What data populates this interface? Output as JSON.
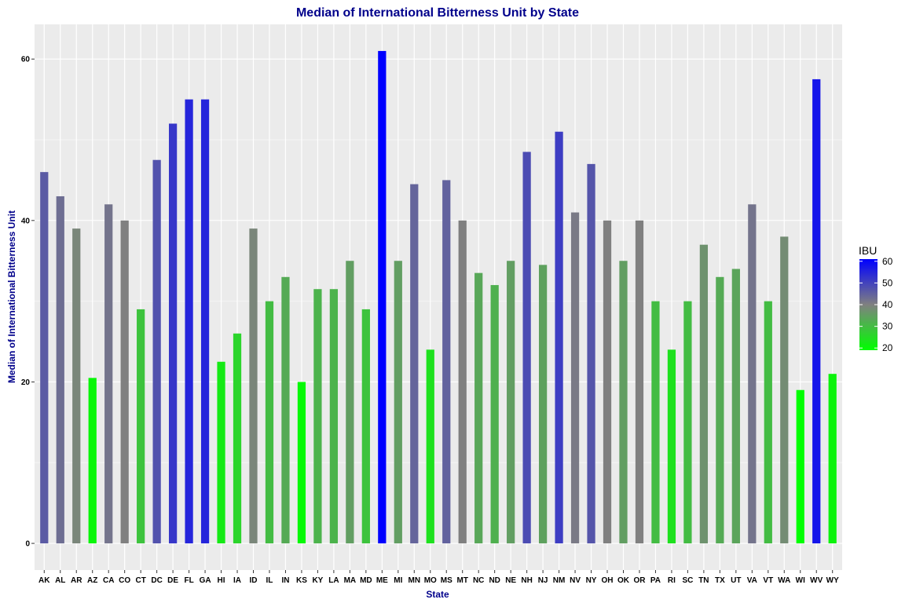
{
  "chart_data": {
    "type": "bar",
    "title": "Median of International Bitterness Unit by State",
    "xlabel": "State",
    "ylabel": "Median of International Bitterness Unit",
    "ylim": [
      -3.3,
      64.3
    ],
    "yticks": [
      0,
      20,
      40,
      60
    ],
    "grid": true,
    "categories": [
      "AK",
      "AL",
      "AR",
      "AZ",
      "CA",
      "CO",
      "CT",
      "DC",
      "DE",
      "FL",
      "GA",
      "HI",
      "IA",
      "ID",
      "IL",
      "IN",
      "KS",
      "KY",
      "LA",
      "MA",
      "MD",
      "ME",
      "MI",
      "MN",
      "MO",
      "MS",
      "MT",
      "NC",
      "ND",
      "NE",
      "NH",
      "NJ",
      "NM",
      "NV",
      "NY",
      "OH",
      "OK",
      "OR",
      "PA",
      "RI",
      "SC",
      "TN",
      "TX",
      "UT",
      "VA",
      "VT",
      "WA",
      "WI",
      "WV",
      "WY"
    ],
    "values": [
      46,
      43,
      39,
      20.5,
      42,
      40,
      29,
      47.5,
      52,
      55,
      55,
      22.5,
      26,
      39,
      30,
      33,
      20,
      31.5,
      31.5,
      35,
      29,
      61,
      35,
      44.5,
      24,
      45,
      40,
      33.5,
      32,
      35,
      48.5,
      34.5,
      51,
      41,
      47,
      40,
      35,
      40,
      30,
      24,
      30,
      37,
      33,
      34,
      42,
      30,
      38,
      19,
      57.5,
      21
    ],
    "legend": {
      "title": "IBU",
      "position": "right",
      "range": [
        19,
        61
      ],
      "ticks": [
        20,
        30,
        40,
        50,
        60
      ],
      "low_color": "#00ff00",
      "mid_color": "#808080",
      "high_color": "#0000ff"
    },
    "colors": {
      "panel_bg": "#ebebeb",
      "grid_major": "#ffffff",
      "grid_minor": "#f5f5f5"
    }
  }
}
